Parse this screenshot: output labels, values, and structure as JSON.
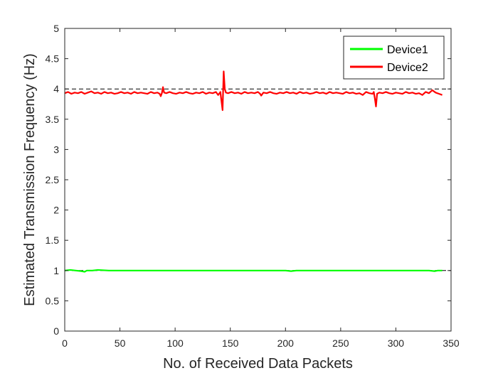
{
  "chart_data": {
    "type": "line",
    "title": "",
    "xlabel": "No. of Received Data Packets",
    "ylabel": "Estimated Transmission Frequency (Hz)",
    "xlim": [
      0,
      350
    ],
    "ylim": [
      0,
      5
    ],
    "xticks": [
      0,
      50,
      100,
      150,
      200,
      250,
      300,
      350
    ],
    "yticks": [
      0,
      0.5,
      1,
      1.5,
      2,
      2.5,
      3,
      3.5,
      4,
      4.5,
      5
    ],
    "yticklabels": [
      "0",
      "0.5",
      "1",
      "1.5",
      "2",
      "2.5",
      "3",
      "3.5",
      "4",
      "4.5",
      "5"
    ],
    "grid": false,
    "legend_position": "top-right",
    "reference_lines": [
      {
        "y": 1,
        "style": "dashed",
        "color": "#000000"
      },
      {
        "y": 4,
        "style": "dashed",
        "color": "#000000"
      }
    ],
    "series": [
      {
        "name": "Device1",
        "color": "#00ff00",
        "x": [
          0,
          5,
          10,
          15,
          18,
          20,
          25,
          30,
          40,
          50,
          60,
          70,
          80,
          90,
          100,
          110,
          120,
          130,
          140,
          150,
          160,
          170,
          180,
          190,
          200,
          205,
          210,
          220,
          230,
          240,
          250,
          260,
          270,
          280,
          290,
          300,
          310,
          320,
          330,
          335,
          338,
          342
        ],
        "values": [
          1.0,
          1.01,
          1.0,
          0.99,
          0.98,
          1.0,
          1.0,
          1.01,
          1.0,
          1.0,
          1.0,
          1.0,
          1.0,
          1.0,
          1.0,
          1.0,
          1.0,
          1.0,
          1.0,
          1.0,
          1.0,
          1.0,
          1.0,
          1.0,
          1.0,
          0.99,
          1.0,
          1.0,
          1.0,
          1.0,
          1.0,
          1.0,
          1.0,
          1.0,
          1.0,
          1.0,
          1.0,
          1.0,
          1.0,
          0.99,
          1.0,
          1.0
        ]
      },
      {
        "name": "Device2",
        "color": "#ff0000",
        "x": [
          0,
          3,
          6,
          9,
          12,
          15,
          18,
          21,
          24,
          27,
          30,
          33,
          36,
          39,
          42,
          45,
          48,
          51,
          54,
          57,
          60,
          63,
          66,
          69,
          72,
          75,
          78,
          81,
          84,
          86,
          87,
          88,
          89,
          90,
          92,
          95,
          98,
          101,
          104,
          107,
          110,
          113,
          116,
          119,
          122,
          125,
          128,
          131,
          134,
          137,
          139,
          141,
          142,
          143,
          144,
          145,
          146,
          148,
          151,
          154,
          157,
          160,
          163,
          166,
          169,
          172,
          175,
          177,
          178,
          180,
          183,
          186,
          189,
          192,
          195,
          198,
          201,
          204,
          207,
          210,
          213,
          216,
          219,
          222,
          225,
          228,
          231,
          234,
          237,
          240,
          243,
          246,
          249,
          252,
          255,
          258,
          261,
          264,
          267,
          270,
          273,
          276,
          279,
          280,
          281,
          282,
          283,
          285,
          288,
          291,
          294,
          297,
          300,
          303,
          306,
          309,
          312,
          315,
          318,
          321,
          324,
          327,
          330,
          333,
          336,
          339,
          342
        ],
        "values": [
          3.93,
          3.95,
          3.92,
          3.94,
          3.93,
          3.95,
          3.92,
          3.94,
          3.96,
          3.93,
          3.94,
          3.92,
          3.95,
          3.93,
          3.94,
          3.92,
          3.93,
          3.95,
          3.93,
          3.94,
          3.92,
          3.95,
          3.93,
          3.94,
          3.93,
          3.92,
          3.95,
          3.93,
          3.94,
          3.92,
          3.88,
          3.93,
          4.03,
          3.94,
          3.93,
          3.95,
          3.93,
          3.92,
          3.94,
          3.93,
          3.95,
          3.93,
          3.92,
          3.94,
          3.93,
          3.95,
          3.92,
          3.94,
          3.93,
          3.95,
          3.9,
          3.95,
          3.8,
          3.65,
          4.29,
          4.0,
          3.94,
          3.93,
          3.95,
          3.93,
          3.94,
          3.92,
          3.95,
          3.93,
          3.94,
          3.93,
          3.95,
          3.92,
          3.89,
          3.94,
          3.93,
          3.95,
          3.93,
          3.92,
          3.94,
          3.93,
          3.95,
          3.93,
          3.94,
          3.92,
          3.95,
          3.93,
          3.94,
          3.92,
          3.93,
          3.95,
          3.93,
          3.94,
          3.92,
          3.95,
          3.93,
          3.94,
          3.93,
          3.92,
          3.95,
          3.93,
          3.94,
          3.92,
          3.93,
          3.9,
          3.95,
          3.93,
          3.92,
          3.95,
          3.84,
          3.71,
          3.92,
          3.94,
          3.93,
          3.95,
          3.93,
          3.92,
          3.94,
          3.93,
          3.92,
          3.95,
          3.93,
          3.94,
          3.92,
          3.93,
          3.9,
          3.95,
          3.93,
          3.98,
          3.94,
          3.92,
          3.9
        ]
      }
    ]
  }
}
